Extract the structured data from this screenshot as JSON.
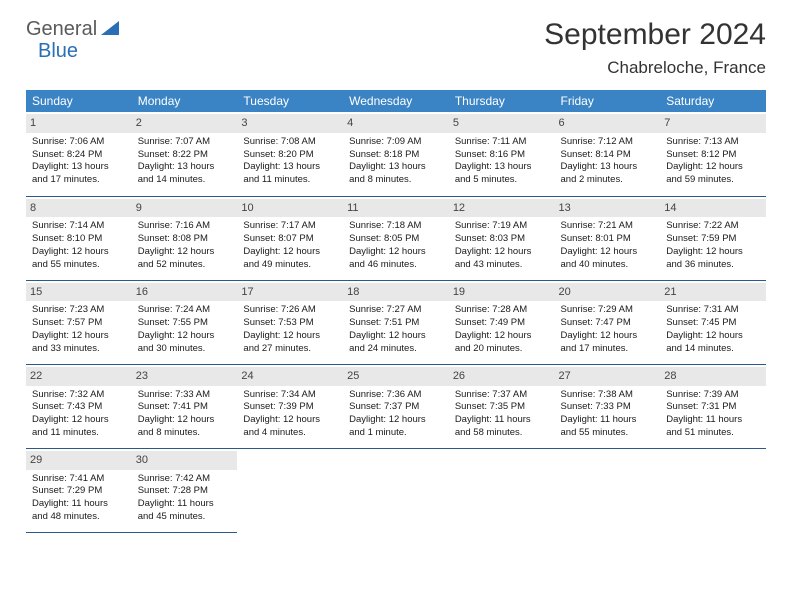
{
  "brand": {
    "part1": "General",
    "part2": "Blue"
  },
  "title": {
    "month": "September 2024",
    "location": "Chabreloche, France"
  },
  "colors": {
    "header_bg": "#3a84c5",
    "header_fg": "#ffffff",
    "daynum_bg": "#e8e8e8",
    "cell_border": "#2a5a8a",
    "brand_blue": "#2a6fb5",
    "brand_gray": "#5a5a5a"
  },
  "weekdays": [
    "Sunday",
    "Monday",
    "Tuesday",
    "Wednesday",
    "Thursday",
    "Friday",
    "Saturday"
  ],
  "weeks": [
    [
      {
        "n": "1",
        "sr": "Sunrise: 7:06 AM",
        "ss": "Sunset: 8:24 PM",
        "d1": "Daylight: 13 hours",
        "d2": "and 17 minutes."
      },
      {
        "n": "2",
        "sr": "Sunrise: 7:07 AM",
        "ss": "Sunset: 8:22 PM",
        "d1": "Daylight: 13 hours",
        "d2": "and 14 minutes."
      },
      {
        "n": "3",
        "sr": "Sunrise: 7:08 AM",
        "ss": "Sunset: 8:20 PM",
        "d1": "Daylight: 13 hours",
        "d2": "and 11 minutes."
      },
      {
        "n": "4",
        "sr": "Sunrise: 7:09 AM",
        "ss": "Sunset: 8:18 PM",
        "d1": "Daylight: 13 hours",
        "d2": "and 8 minutes."
      },
      {
        "n": "5",
        "sr": "Sunrise: 7:11 AM",
        "ss": "Sunset: 8:16 PM",
        "d1": "Daylight: 13 hours",
        "d2": "and 5 minutes."
      },
      {
        "n": "6",
        "sr": "Sunrise: 7:12 AM",
        "ss": "Sunset: 8:14 PM",
        "d1": "Daylight: 13 hours",
        "d2": "and 2 minutes."
      },
      {
        "n": "7",
        "sr": "Sunrise: 7:13 AM",
        "ss": "Sunset: 8:12 PM",
        "d1": "Daylight: 12 hours",
        "d2": "and 59 minutes."
      }
    ],
    [
      {
        "n": "8",
        "sr": "Sunrise: 7:14 AM",
        "ss": "Sunset: 8:10 PM",
        "d1": "Daylight: 12 hours",
        "d2": "and 55 minutes."
      },
      {
        "n": "9",
        "sr": "Sunrise: 7:16 AM",
        "ss": "Sunset: 8:08 PM",
        "d1": "Daylight: 12 hours",
        "d2": "and 52 minutes."
      },
      {
        "n": "10",
        "sr": "Sunrise: 7:17 AM",
        "ss": "Sunset: 8:07 PM",
        "d1": "Daylight: 12 hours",
        "d2": "and 49 minutes."
      },
      {
        "n": "11",
        "sr": "Sunrise: 7:18 AM",
        "ss": "Sunset: 8:05 PM",
        "d1": "Daylight: 12 hours",
        "d2": "and 46 minutes."
      },
      {
        "n": "12",
        "sr": "Sunrise: 7:19 AM",
        "ss": "Sunset: 8:03 PM",
        "d1": "Daylight: 12 hours",
        "d2": "and 43 minutes."
      },
      {
        "n": "13",
        "sr": "Sunrise: 7:21 AM",
        "ss": "Sunset: 8:01 PM",
        "d1": "Daylight: 12 hours",
        "d2": "and 40 minutes."
      },
      {
        "n": "14",
        "sr": "Sunrise: 7:22 AM",
        "ss": "Sunset: 7:59 PM",
        "d1": "Daylight: 12 hours",
        "d2": "and 36 minutes."
      }
    ],
    [
      {
        "n": "15",
        "sr": "Sunrise: 7:23 AM",
        "ss": "Sunset: 7:57 PM",
        "d1": "Daylight: 12 hours",
        "d2": "and 33 minutes."
      },
      {
        "n": "16",
        "sr": "Sunrise: 7:24 AM",
        "ss": "Sunset: 7:55 PM",
        "d1": "Daylight: 12 hours",
        "d2": "and 30 minutes."
      },
      {
        "n": "17",
        "sr": "Sunrise: 7:26 AM",
        "ss": "Sunset: 7:53 PM",
        "d1": "Daylight: 12 hours",
        "d2": "and 27 minutes."
      },
      {
        "n": "18",
        "sr": "Sunrise: 7:27 AM",
        "ss": "Sunset: 7:51 PM",
        "d1": "Daylight: 12 hours",
        "d2": "and 24 minutes."
      },
      {
        "n": "19",
        "sr": "Sunrise: 7:28 AM",
        "ss": "Sunset: 7:49 PM",
        "d1": "Daylight: 12 hours",
        "d2": "and 20 minutes."
      },
      {
        "n": "20",
        "sr": "Sunrise: 7:29 AM",
        "ss": "Sunset: 7:47 PM",
        "d1": "Daylight: 12 hours",
        "d2": "and 17 minutes."
      },
      {
        "n": "21",
        "sr": "Sunrise: 7:31 AM",
        "ss": "Sunset: 7:45 PM",
        "d1": "Daylight: 12 hours",
        "d2": "and 14 minutes."
      }
    ],
    [
      {
        "n": "22",
        "sr": "Sunrise: 7:32 AM",
        "ss": "Sunset: 7:43 PM",
        "d1": "Daylight: 12 hours",
        "d2": "and 11 minutes."
      },
      {
        "n": "23",
        "sr": "Sunrise: 7:33 AM",
        "ss": "Sunset: 7:41 PM",
        "d1": "Daylight: 12 hours",
        "d2": "and 8 minutes."
      },
      {
        "n": "24",
        "sr": "Sunrise: 7:34 AM",
        "ss": "Sunset: 7:39 PM",
        "d1": "Daylight: 12 hours",
        "d2": "and 4 minutes."
      },
      {
        "n": "25",
        "sr": "Sunrise: 7:36 AM",
        "ss": "Sunset: 7:37 PM",
        "d1": "Daylight: 12 hours",
        "d2": "and 1 minute."
      },
      {
        "n": "26",
        "sr": "Sunrise: 7:37 AM",
        "ss": "Sunset: 7:35 PM",
        "d1": "Daylight: 11 hours",
        "d2": "and 58 minutes."
      },
      {
        "n": "27",
        "sr": "Sunrise: 7:38 AM",
        "ss": "Sunset: 7:33 PM",
        "d1": "Daylight: 11 hours",
        "d2": "and 55 minutes."
      },
      {
        "n": "28",
        "sr": "Sunrise: 7:39 AM",
        "ss": "Sunset: 7:31 PM",
        "d1": "Daylight: 11 hours",
        "d2": "and 51 minutes."
      }
    ],
    [
      {
        "n": "29",
        "sr": "Sunrise: 7:41 AM",
        "ss": "Sunset: 7:29 PM",
        "d1": "Daylight: 11 hours",
        "d2": "and 48 minutes."
      },
      {
        "n": "30",
        "sr": "Sunrise: 7:42 AM",
        "ss": "Sunset: 7:28 PM",
        "d1": "Daylight: 11 hours",
        "d2": "and 45 minutes."
      },
      null,
      null,
      null,
      null,
      null
    ]
  ]
}
